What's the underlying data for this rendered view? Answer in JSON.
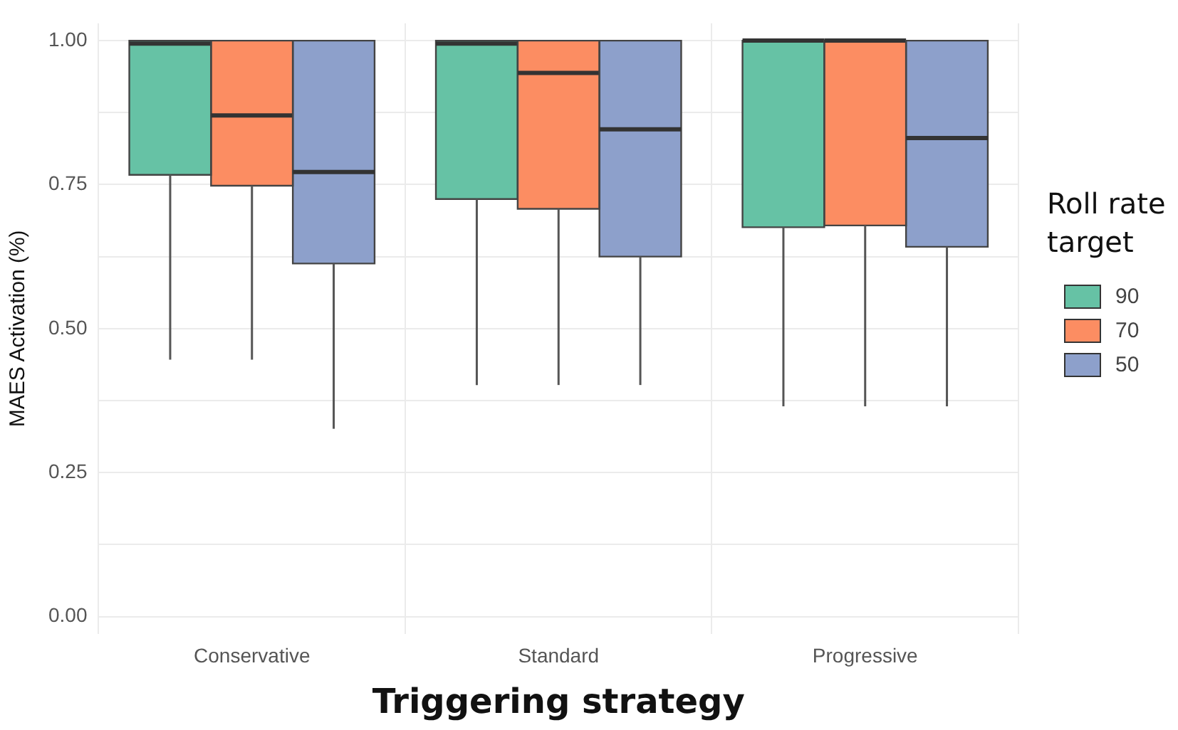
{
  "chart_data": {
    "type": "box",
    "xlabel": "Triggering strategy",
    "ylabel": "MAES Activation (%)",
    "legend_title": "Roll rate target",
    "legend": "right",
    "grid": true,
    "categories": [
      "Conservative",
      "Standard",
      "Progressive"
    ],
    "ylim": [
      -0.03,
      1.03
    ],
    "yticks": [
      {
        "value": 0,
        "label": "0.00"
      },
      {
        "value": 0.125,
        "label": null
      },
      {
        "value": 0.25,
        "label": "0.25"
      },
      {
        "value": 0.375,
        "label": null
      },
      {
        "value": 0.5,
        "label": "0.50"
      },
      {
        "value": 0.625,
        "label": null
      },
      {
        "value": 0.75,
        "label": "0.75"
      },
      {
        "value": 0.875,
        "label": null
      },
      {
        "value": 1,
        "label": "1.00"
      }
    ],
    "series": [
      {
        "name": "90",
        "color": "#66c2a5",
        "boxes": [
          {
            "low": 0.446,
            "q1": 0.767,
            "median": 0.995,
            "q3": 1,
            "high": 1
          },
          {
            "low": 0.402,
            "q1": 0.725,
            "median": 0.995,
            "q3": 1,
            "high": 1
          },
          {
            "low": 0.365,
            "q1": 0.676,
            "median": 1,
            "q3": 1,
            "high": 1
          }
        ]
      },
      {
        "name": "70",
        "color": "#fc8d62",
        "boxes": [
          {
            "low": 0.446,
            "q1": 0.748,
            "median": 0.87,
            "q3": 1,
            "high": 1
          },
          {
            "low": 0.402,
            "q1": 0.708,
            "median": 0.944,
            "q3": 1,
            "high": 1
          },
          {
            "low": 0.365,
            "q1": 0.679,
            "median": 1,
            "q3": 1,
            "high": 1
          }
        ]
      },
      {
        "name": "50",
        "color": "#8da0cb",
        "boxes": [
          {
            "low": 0.326,
            "q1": 0.613,
            "median": 0.772,
            "q3": 1,
            "high": 1
          },
          {
            "low": 0.402,
            "q1": 0.625,
            "median": 0.846,
            "q3": 1,
            "high": 1
          },
          {
            "low": 0.365,
            "q1": 0.642,
            "median": 0.831,
            "q3": 1,
            "high": 1
          }
        ]
      }
    ]
  }
}
